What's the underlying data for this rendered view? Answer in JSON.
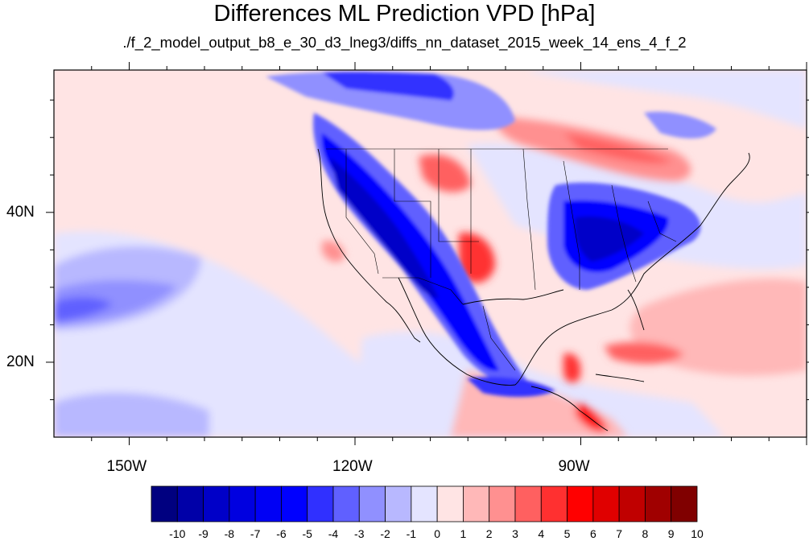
{
  "title": "Differences ML Prediction VPD [hPa]",
  "subtitle": "./f_2_model_output_b8_e_30_d3_lneg3/diffs_nn_dataset_2015_week_14_ens_4_f_2",
  "map": {
    "projection": "cylindrical-equidistant",
    "region": "North America, eastern Pacific, Gulf of Mexico, Caribbean",
    "lon_range": [
      -160,
      -60
    ],
    "lat_range": [
      10,
      59
    ],
    "lon_ticks": [
      {
        "lon": -150,
        "label": "150W"
      },
      {
        "lon": -120,
        "label": "120W"
      },
      {
        "lon": -90,
        "label": "90W"
      }
    ],
    "lat_ticks": [
      {
        "lat": 40,
        "label": "40N"
      },
      {
        "lat": 20,
        "label": "20N"
      }
    ],
    "features": [
      "coastlines",
      "country-borders",
      "us-state-borders"
    ]
  },
  "colorbar": {
    "levels": [
      "-10",
      "-9",
      "-8",
      "-7",
      "-6",
      "-5",
      "-4",
      "-3",
      "-2",
      "-1",
      "0",
      "1",
      "2",
      "3",
      "4",
      "5",
      "6",
      "7",
      "8",
      "9",
      "10"
    ],
    "colors": [
      "#000080",
      "#0000a8",
      "#0000c8",
      "#0000e0",
      "#0000f5",
      "#0000ff",
      "#3030ff",
      "#6060ff",
      "#9090ff",
      "#b8b8ff",
      "#e4e4ff",
      "#ffe4e4",
      "#ffb8b8",
      "#ff9090",
      "#ff6060",
      "#ff3030",
      "#ff0000",
      "#e00000",
      "#c00000",
      "#a00000",
      "#800000"
    ]
  }
}
